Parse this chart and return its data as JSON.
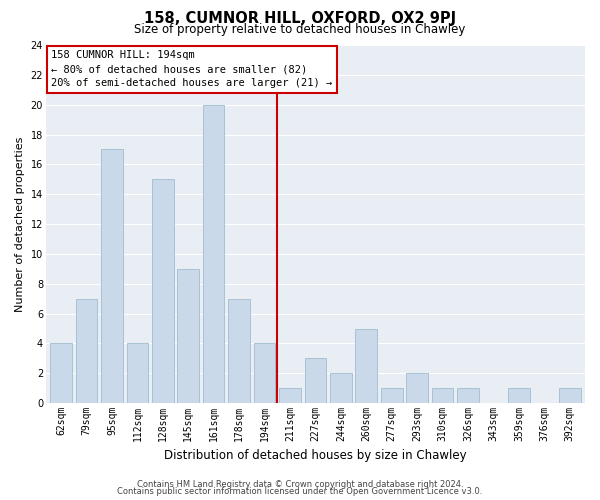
{
  "title": "158, CUMNOR HILL, OXFORD, OX2 9PJ",
  "subtitle": "Size of property relative to detached houses in Chawley",
  "xlabel": "Distribution of detached houses by size in Chawley",
  "ylabel": "Number of detached properties",
  "categories": [
    "62sqm",
    "79sqm",
    "95sqm",
    "112sqm",
    "128sqm",
    "145sqm",
    "161sqm",
    "178sqm",
    "194sqm",
    "211sqm",
    "227sqm",
    "244sqm",
    "260sqm",
    "277sqm",
    "293sqm",
    "310sqm",
    "326sqm",
    "343sqm",
    "359sqm",
    "376sqm",
    "392sqm"
  ],
  "values": [
    4,
    7,
    17,
    4,
    15,
    9,
    20,
    7,
    4,
    1,
    3,
    2,
    5,
    1,
    2,
    1,
    1,
    0,
    1,
    0,
    1
  ],
  "bar_color": "#c9d9ea",
  "bar_edge_color": "#a0bcd0",
  "highlight_index": 8,
  "highlight_line_color": "#cc0000",
  "ylim": [
    0,
    24
  ],
  "yticks": [
    0,
    2,
    4,
    6,
    8,
    10,
    12,
    14,
    16,
    18,
    20,
    22,
    24
  ],
  "annotation_title": "158 CUMNOR HILL: 194sqm",
  "annotation_line1": "← 80% of detached houses are smaller (82)",
  "annotation_line2": "20% of semi-detached houses are larger (21) →",
  "annotation_box_color": "#ffffff",
  "annotation_box_edge": "#cc0000",
  "footer_line1": "Contains HM Land Registry data © Crown copyright and database right 2024.",
  "footer_line2": "Contains public sector information licensed under the Open Government Licence v3.0.",
  "background_color": "#ffffff",
  "plot_bg_color": "#e8eef4",
  "grid_color": "#ffffff",
  "title_fontsize": 10.5,
  "subtitle_fontsize": 8.5,
  "ylabel_fontsize": 8,
  "xlabel_fontsize": 8.5,
  "tick_fontsize": 7,
  "annotation_fontsize": 7.5,
  "footer_fontsize": 6
}
